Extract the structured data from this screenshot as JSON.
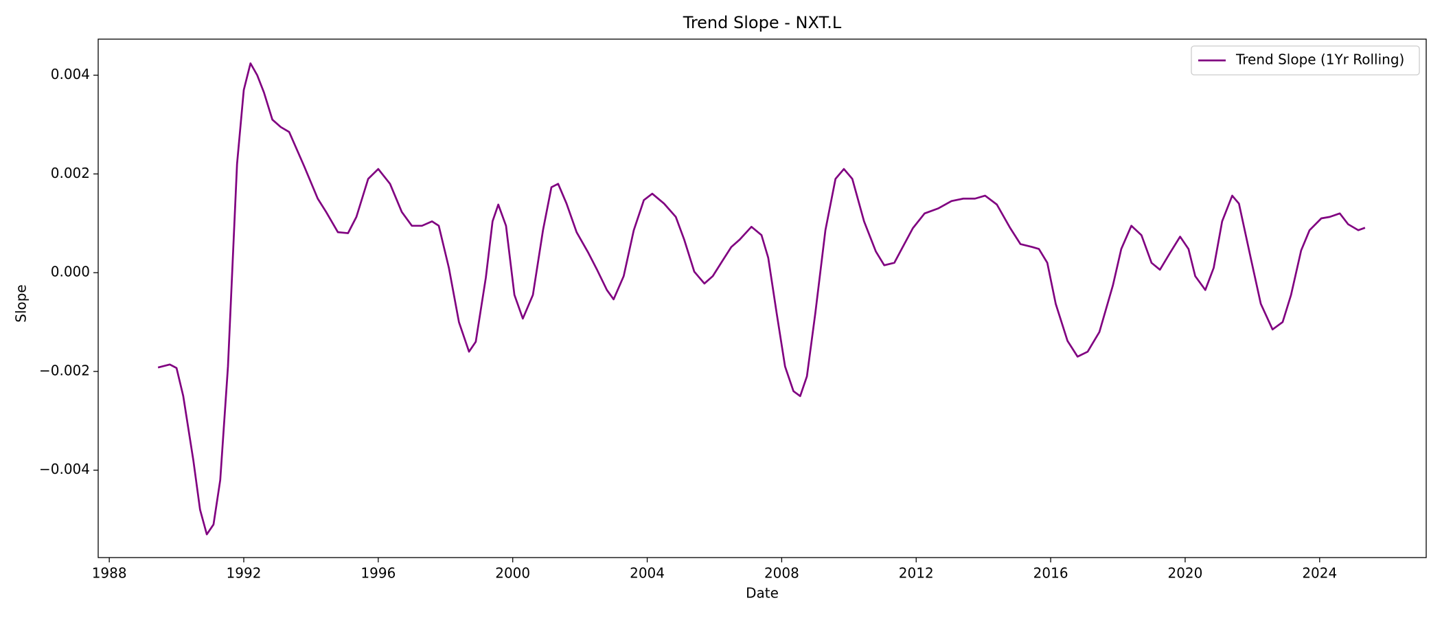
{
  "chart_data": {
    "type": "line",
    "title": "Trend Slope - NXT.L",
    "xlabel": "Date",
    "ylabel": "Slope",
    "xlim": [
      1987.67,
      2027.17
    ],
    "xticks": [
      1988,
      1992,
      1996,
      2000,
      2004,
      2008,
      2012,
      2016,
      2020,
      2024
    ],
    "ylim": [
      -0.00577,
      0.00473
    ],
    "yticks": [
      {
        "value": -0.004,
        "label": "−0.004"
      },
      {
        "value": -0.002,
        "label": "−0.002"
      },
      {
        "value": 0,
        "label": "0.000"
      },
      0.002,
      0.004
    ],
    "legend": "upper right",
    "grid": false,
    "x": [
      1989.45,
      1989.8,
      1990.0,
      1990.2,
      1990.5,
      1990.7,
      1990.9,
      1991.1,
      1991.3,
      1991.53,
      1991.8,
      1992.0,
      1992.2,
      1992.4,
      1992.6,
      1992.85,
      1993.1,
      1993.35,
      1993.8,
      1994.2,
      1994.45,
      1994.8,
      1995.1,
      1995.35,
      1995.7,
      1996.0,
      1996.35,
      1996.7,
      1997.0,
      1997.3,
      1997.6,
      1997.8,
      1998.1,
      1998.4,
      1998.7,
      1998.9,
      1999.2,
      1999.4,
      1999.57,
      1999.8,
      2000.05,
      2000.3,
      2000.6,
      2000.9,
      2001.15,
      2001.35,
      2001.6,
      2001.9,
      2002.25,
      2002.5,
      2002.8,
      2003.0,
      2003.3,
      2003.6,
      2003.9,
      2004.15,
      2004.5,
      2004.85,
      2005.1,
      2005.4,
      2005.7,
      2005.95,
      2006.2,
      2006.5,
      2006.75,
      2007.1,
      2007.4,
      2007.6,
      2007.85,
      2008.1,
      2008.35,
      2008.55,
      2008.75,
      2009.0,
      2009.3,
      2009.6,
      2009.85,
      2010.1,
      2010.45,
      2010.8,
      2011.05,
      2011.35,
      2011.6,
      2011.9,
      2012.25,
      2012.65,
      2013.05,
      2013.4,
      2013.75,
      2014.05,
      2014.4,
      2014.8,
      2015.1,
      2015.45,
      2015.65,
      2015.9,
      2016.15,
      2016.5,
      2016.8,
      2017.1,
      2017.45,
      2017.85,
      2018.1,
      2018.4,
      2018.7,
      2019.0,
      2019.25,
      2019.55,
      2019.85,
      2020.1,
      2020.3,
      2020.6,
      2020.85,
      2021.1,
      2021.4,
      2021.6,
      2021.95,
      2022.25,
      2022.6,
      2022.9,
      2023.15,
      2023.45,
      2023.7,
      2024.05,
      2024.3,
      2024.6,
      2024.85,
      2025.15,
      2025.35
    ],
    "series": [
      {
        "name": "Trend Slope (1Yr Rolling)",
        "color": "#800080",
        "values": [
          -0.00192,
          -0.00186,
          -0.00193,
          -0.0025,
          -0.0038,
          -0.0048,
          -0.0053,
          -0.0051,
          -0.0042,
          -0.0019,
          0.0022,
          0.0037,
          0.00424,
          0.004,
          0.00365,
          0.0031,
          0.00295,
          0.00285,
          0.00215,
          0.0015,
          0.00123,
          0.00082,
          0.0008,
          0.00113,
          0.0019,
          0.0021,
          0.0018,
          0.00123,
          0.00095,
          0.00095,
          0.00104,
          0.00095,
          0.0001,
          -0.001,
          -0.0016,
          -0.0014,
          -0.0001,
          0.00104,
          0.00138,
          0.00095,
          -0.00045,
          -0.00093,
          -0.00045,
          0.00086,
          0.00173,
          0.0018,
          0.0014,
          0.00082,
          0.0004,
          7e-05,
          -0.00035,
          -0.00054,
          -7e-05,
          0.00086,
          0.00147,
          0.0016,
          0.0014,
          0.00113,
          0.00067,
          2e-05,
          -0.00022,
          -7e-05,
          0.0002,
          0.00052,
          0.00067,
          0.00093,
          0.00076,
          0.0003,
          -0.00082,
          -0.0019,
          -0.0024,
          -0.0025,
          -0.0021,
          -0.00082,
          0.00086,
          0.0019,
          0.0021,
          0.0019,
          0.00104,
          0.00043,
          0.00015,
          0.0002,
          0.00052,
          0.0009,
          0.0012,
          0.0013,
          0.00145,
          0.0015,
          0.0015,
          0.00156,
          0.00138,
          0.0009,
          0.00058,
          0.00052,
          0.00048,
          0.0002,
          -0.00063,
          -0.00138,
          -0.0017,
          -0.0016,
          -0.0012,
          -0.00026,
          0.00048,
          0.00095,
          0.00076,
          0.0002,
          6e-05,
          0.0004,
          0.00073,
          0.00048,
          -7e-05,
          -0.00035,
          0.0001,
          0.00104,
          0.00156,
          0.0014,
          0.0003,
          -0.00063,
          -0.00115,
          -0.001,
          -0.00045,
          0.00045,
          0.00086,
          0.0011,
          0.00113,
          0.0012,
          0.00098,
          0.00086,
          0.00091
        ]
      }
    ]
  }
}
